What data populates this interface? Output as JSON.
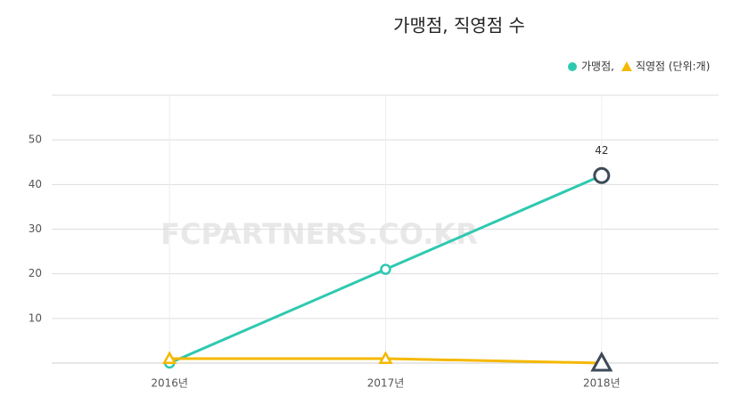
{
  "chart_data": {
    "type": "line",
    "title": "가맹점, 직영점 수",
    "watermark": "FCPARTNERS.CO.KR",
    "categories": [
      "2016년",
      "2017년",
      "2018년"
    ],
    "series": [
      {
        "name": "가맹점,",
        "color": "#2ec9b0",
        "marker": "circle",
        "values": [
          0,
          21,
          42
        ],
        "value_labels": [
          null,
          null,
          "42"
        ]
      },
      {
        "name": "직영점 (단위:개)",
        "color": "#f5b800",
        "marker": "triangle",
        "values": [
          1,
          1,
          0
        ]
      }
    ],
    "ylim": [
      0,
      60
    ],
    "yticks": [
      10,
      20,
      30,
      40,
      50
    ],
    "grid": true,
    "legend": "top-right"
  }
}
